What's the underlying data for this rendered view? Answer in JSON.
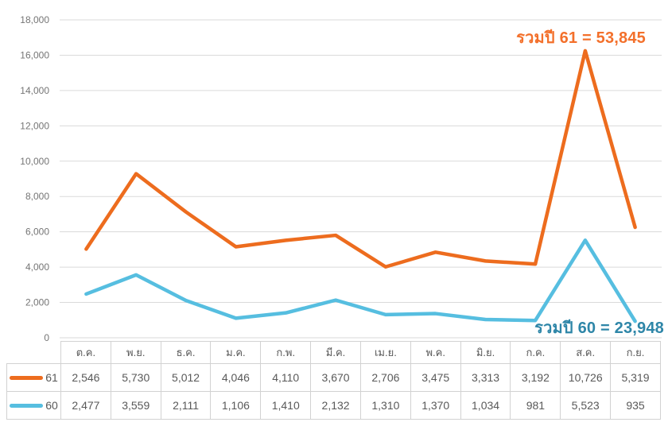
{
  "chart_data": {
    "type": "line",
    "stacked": true,
    "title": "",
    "xlabel": "",
    "ylabel": "",
    "categories": [
      "ต.ค.",
      "พ.ย.",
      "ธ.ค.",
      "ม.ค.",
      "ก.พ.",
      "มี.ค.",
      "เม.ย.",
      "พ.ค.",
      "มิ.ย.",
      "ก.ค.",
      "ส.ค.",
      "ก.ย."
    ],
    "series": [
      {
        "name": "61",
        "color": "#ED6C1E",
        "total": 53845,
        "values": [
          2546,
          5730,
          5012,
          4046,
          4110,
          3670,
          2706,
          3475,
          3313,
          3192,
          10726,
          5319
        ]
      },
      {
        "name": "60",
        "color": "#56BEE0",
        "total": 23948,
        "values": [
          2477,
          3559,
          2111,
          1106,
          1410,
          2132,
          1310,
          1370,
          1034,
          981,
          5523,
          935
        ]
      }
    ],
    "ylim": [
      0,
      18000
    ],
    "ytick_step": 2000,
    "ytick_labels": [
      "0",
      "2,000",
      "4,000",
      "6,000",
      "8,000",
      "10,000",
      "12,000",
      "14,000",
      "16,000",
      "18,000"
    ],
    "grid": true,
    "legend_position": "table-left-column",
    "annotations": [
      {
        "id": "total61",
        "text": "รวมปี 61 = 53,845",
        "color": "#F3702B"
      },
      {
        "id": "total60",
        "text": "รวมปี 60 = 23,948",
        "color": "#2E86A8"
      }
    ]
  },
  "style_colors": {
    "gridline": "#DADADA",
    "axis_label": "#757575",
    "table_border": "#D2D2D2",
    "table_text": "#595959"
  }
}
